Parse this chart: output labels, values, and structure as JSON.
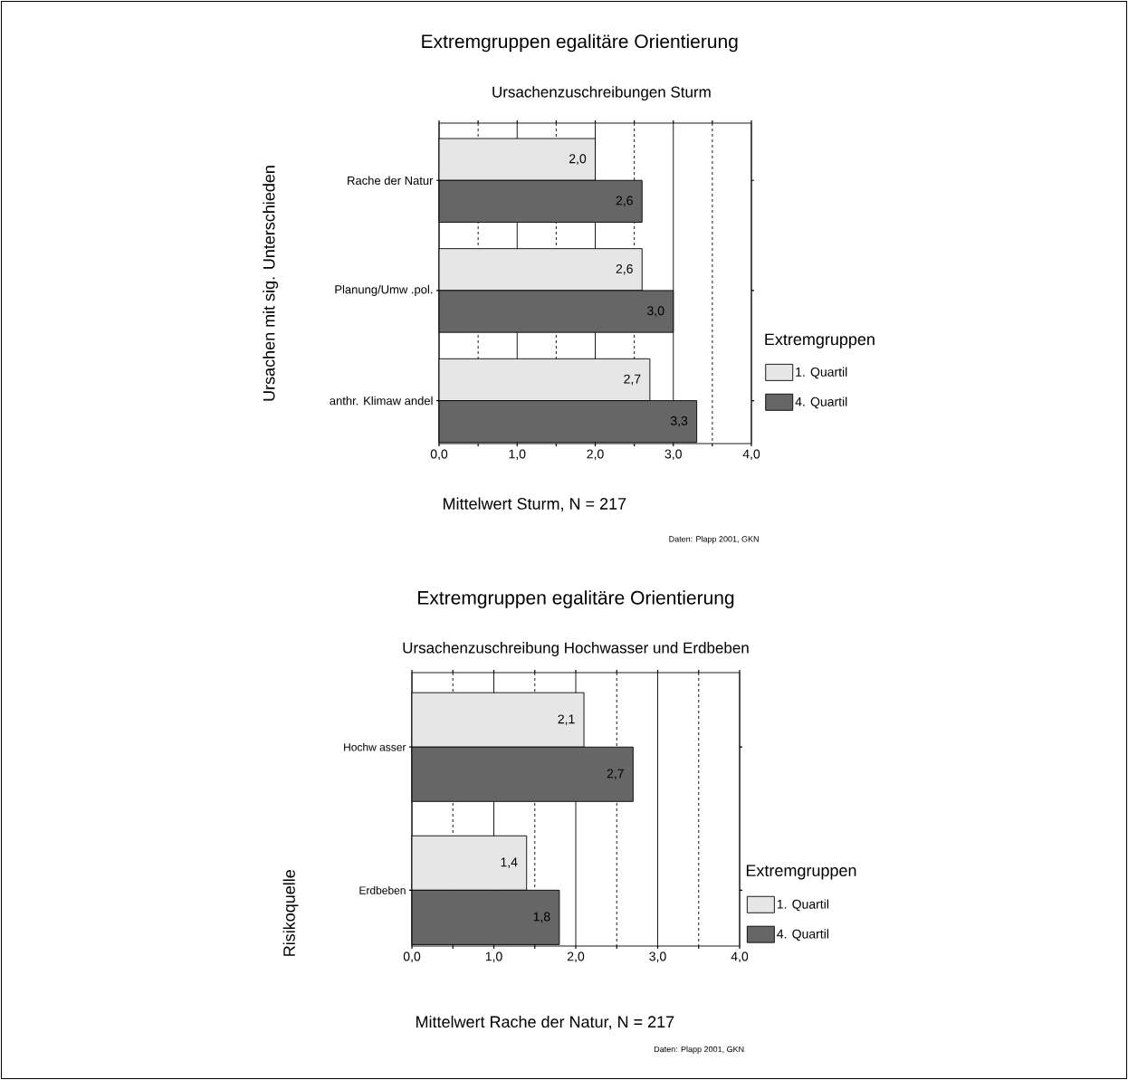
{
  "chart_data": [
    {
      "type": "bar",
      "orientation": "horizontal",
      "title": "Extremgruppen egalitäre Orientierung",
      "subtitle": "Ursachenzuschreibungen Sturm",
      "xlabel": "Mittelwert Sturm, N = 217",
      "ylabel": "Ursachen mit sig. Unterschieden",
      "legend_title": "Extremgruppen",
      "annotations": [
        "Daten: Plapp 2001, GKN"
      ],
      "categories": [
        "Rache der Natur",
        "Planung/Umw .pol.",
        "anthr. Klimaw andel"
      ],
      "series": [
        {
          "name": "1. Quartil",
          "color": "#e6e6e6",
          "values": [
            2.0,
            2.6,
            2.7
          ],
          "value_labels": [
            "2,0",
            "2,6",
            "2,7"
          ]
        },
        {
          "name": "4. Quartil",
          "color": "#666666",
          "values": [
            2.6,
            3.0,
            3.3
          ],
          "value_labels": [
            "2,6",
            "3,0",
            "3,3"
          ]
        }
      ],
      "xlim": [
        0,
        4
      ],
      "xticks": [
        {
          "value": 0,
          "label": "0,0"
        },
        {
          "value": 0.5,
          "label": null
        },
        {
          "value": 1,
          "label": "1,0"
        },
        {
          "value": 1.5,
          "label": null
        },
        {
          "value": 2,
          "label": "2,0"
        },
        {
          "value": 2.5,
          "label": null
        },
        {
          "value": 3,
          "label": "3,0"
        },
        {
          "value": 3.5,
          "label": null
        },
        {
          "value": 4,
          "label": "4,0"
        }
      ],
      "grid": "x",
      "legend": "right"
    },
    {
      "type": "bar",
      "orientation": "horizontal",
      "title": "Extremgruppen egalitäre Orientierung",
      "subtitle": "Ursachenzuschreibung Hochwasser und Erdbeben",
      "xlabel": "Mittelwert Rache der Natur, N = 217",
      "ylabel": "Risikoquelle",
      "legend_title": "Extremgruppen",
      "annotations": [
        "Daten: Plapp 2001, GKN"
      ],
      "categories": [
        "Hochw asser",
        "Erdbeben"
      ],
      "series": [
        {
          "name": "1. Quartil",
          "color": "#e6e6e6",
          "values": [
            2.1,
            1.4
          ],
          "value_labels": [
            "2,1",
            "1,4"
          ]
        },
        {
          "name": "4. Quartil",
          "color": "#666666",
          "values": [
            2.7,
            1.8
          ],
          "value_labels": [
            "2,7",
            "1,8"
          ]
        }
      ],
      "xlim": [
        0,
        4
      ],
      "xticks": [
        {
          "value": 0,
          "label": "0,0"
        },
        {
          "value": 0.5,
          "label": null
        },
        {
          "value": 1,
          "label": "1,0"
        },
        {
          "value": 1.5,
          "label": null
        },
        {
          "value": 2,
          "label": "2,0"
        },
        {
          "value": 2.5,
          "label": null
        },
        {
          "value": 3,
          "label": "3,0"
        },
        {
          "value": 3.5,
          "label": null
        },
        {
          "value": 4,
          "label": "4,0"
        }
      ],
      "grid": "x",
      "legend": "right"
    }
  ]
}
